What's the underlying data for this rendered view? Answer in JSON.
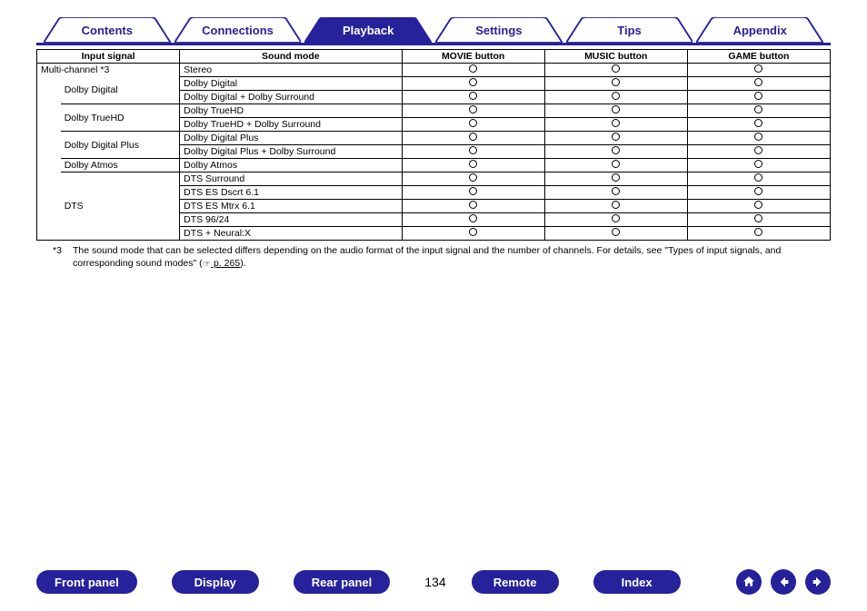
{
  "colors": {
    "brand": "#25229b",
    "brand_light": "#ffffff",
    "circle_border": "#000000"
  },
  "tabs": [
    {
      "label": "Contents",
      "active": false
    },
    {
      "label": "Connections",
      "active": false
    },
    {
      "label": "Playback",
      "active": true
    },
    {
      "label": "Settings",
      "active": false
    },
    {
      "label": "Tips",
      "active": false
    },
    {
      "label": "Appendix",
      "active": false
    }
  ],
  "table": {
    "headers": [
      "Input signal",
      "Sound mode",
      "MOVIE button",
      "MUSIC button",
      "GAME button"
    ],
    "col_widths_pct": [
      18,
      28,
      18,
      18,
      18
    ],
    "groups": [
      {
        "input": "Multi-channel *3",
        "indent": 0,
        "sound_modes": [
          "Stereo"
        ]
      },
      {
        "input": "Dolby Digital",
        "indent": 1,
        "sound_modes": [
          "Dolby Digital",
          "Dolby Digital + Dolby Surround"
        ]
      },
      {
        "input": "Dolby TrueHD",
        "indent": 1,
        "sound_modes": [
          "Dolby TrueHD",
          "Dolby TrueHD + Dolby Surround"
        ]
      },
      {
        "input": "Dolby Digital Plus",
        "indent": 1,
        "sound_modes": [
          "Dolby Digital Plus",
          "Dolby Digital Plus + Dolby Surround"
        ]
      },
      {
        "input": "Dolby Atmos",
        "indent": 1,
        "sound_modes": [
          "Dolby Atmos"
        ]
      },
      {
        "input": "DTS",
        "indent": 1,
        "sound_modes": [
          "DTS Surround",
          "DTS ES Dscrt 6.1",
          "DTS ES Mtrx 6.1",
          "DTS 96/24",
          "DTS + Neural:X"
        ]
      }
    ]
  },
  "footnote": {
    "marker": "*3",
    "text_pre": "The sound mode that can be selected differs depending on the audio format of the input signal and the number of channels. For details, see \"Types of input signals, and corresponding sound modes\" (",
    "pointer_glyph": "☞",
    "page_link": " p. 265",
    "text_post": ")."
  },
  "bottom": {
    "buttons": [
      "Front panel",
      "Display",
      "Rear panel"
    ],
    "page_number": "134",
    "buttons_right": [
      "Remote",
      "Index"
    ]
  }
}
